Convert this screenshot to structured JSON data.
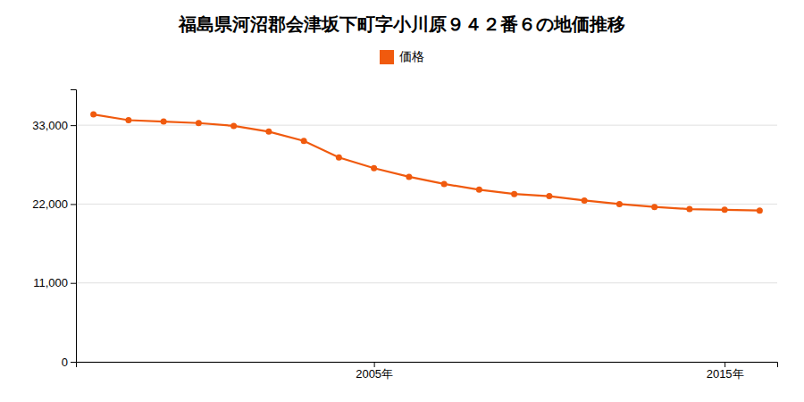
{
  "chart_data": {
    "type": "line",
    "title": "福島県河沼郡会津坂下町字小川原９４２番６の地価推移",
    "x": [
      1997,
      1998,
      1999,
      2000,
      2001,
      2002,
      2003,
      2004,
      2005,
      2006,
      2007,
      2008,
      2009,
      2010,
      2011,
      2012,
      2013,
      2014,
      2015,
      2016
    ],
    "series": [
      {
        "name": "価格",
        "color": "#f05a0e",
        "marker": "circle",
        "line_style": "solid",
        "values": [
          34500,
          33700,
          33500,
          33300,
          32900,
          32100,
          30800,
          28500,
          27000,
          25800,
          24800,
          24000,
          23400,
          23100,
          22500,
          22000,
          21600,
          21300,
          21200,
          21100
        ]
      }
    ],
    "xlim": [
      1996.5,
      2016.5
    ],
    "xticks": [
      {
        "value": 2005,
        "label": "2005年"
      },
      {
        "value": 2015,
        "label": "2015年"
      }
    ],
    "ylim": [
      0,
      38000
    ],
    "yticks": [
      0,
      {
        "value": 11000,
        "label": "11,000"
      },
      {
        "value": 22000,
        "label": "22,000"
      },
      {
        "value": 33000,
        "label": "33,000"
      }
    ],
    "grid": true,
    "legend": "top"
  }
}
